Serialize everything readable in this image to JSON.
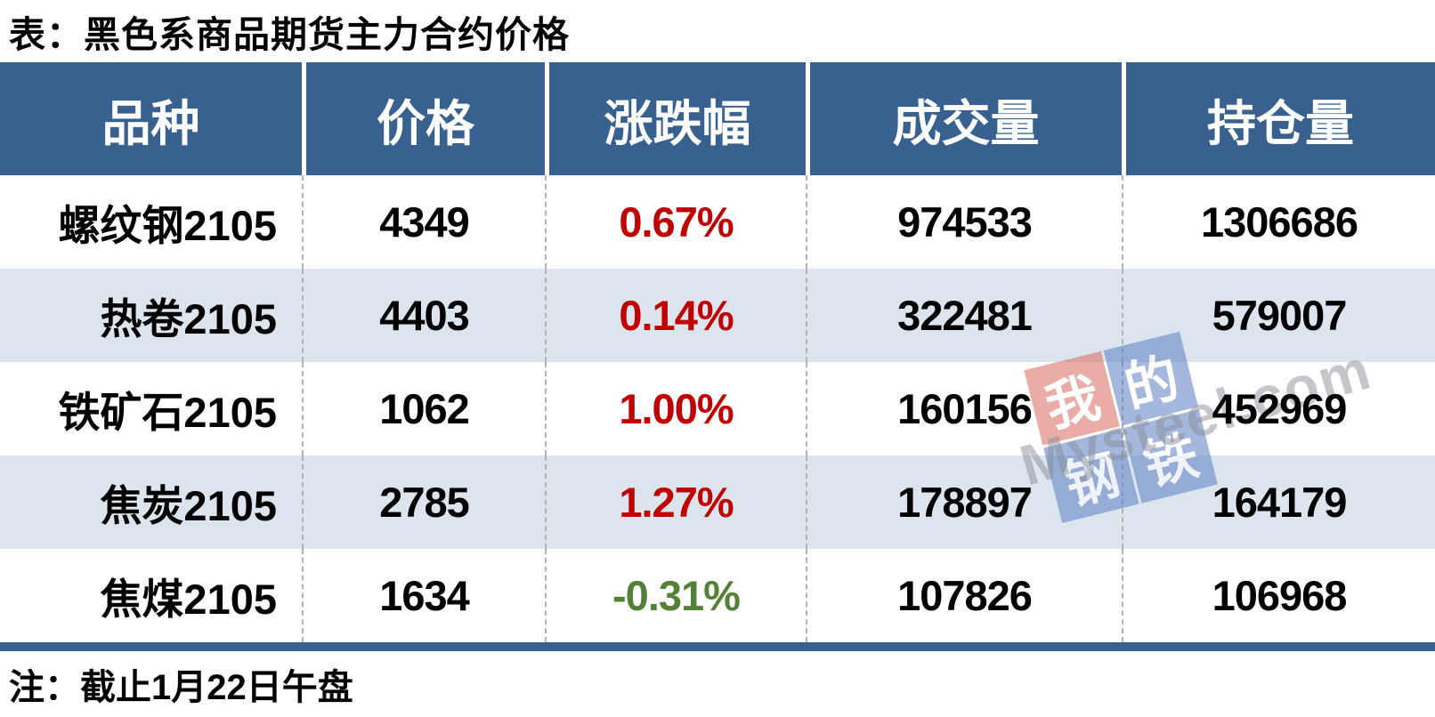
{
  "page": {
    "title": "表：黑色系商品期货主力合约价格",
    "note": "注：截止1月22日午盘"
  },
  "chart_data": {
    "type": "table",
    "title": "表：黑色系商品期货主力合约价格",
    "columns": [
      "品种",
      "价格",
      "涨跌幅",
      "成交量",
      "持仓量"
    ],
    "rows": [
      [
        "螺纹钢2105",
        "4349",
        "0.67%",
        "974533",
        "1306686"
      ],
      [
        "热卷2105",
        "4403",
        "0.14%",
        "322481",
        "579007"
      ],
      [
        "铁矿石2105",
        "1062",
        "1.00%",
        "160156",
        "452969"
      ],
      [
        "焦炭2105",
        "2785",
        "1.27%",
        "178897",
        "164179"
      ],
      [
        "焦煤2105",
        "1634",
        "-0.31%",
        "107826",
        "106968"
      ]
    ],
    "change_direction": [
      "up",
      "up",
      "up",
      "up",
      "down"
    ],
    "note": "注：截止1月22日午盘",
    "layout": {
      "striped": true,
      "stripe_row_indices": [
        1,
        3
      ],
      "legend": "none",
      "grid": "dashed-column-dividers"
    }
  },
  "watermark": {
    "logo_chars": [
      "我",
      "的",
      "钢",
      "铁"
    ],
    "site_text": "Mysteel.com"
  },
  "colors": {
    "header_bg": "#38618f",
    "stripe_bg": "#dce5ee",
    "up_red": "#c00000",
    "down_green": "#538135",
    "divider_dash": "#b3b3b3",
    "bottom_bar": "#38618f",
    "watermark_red": "#d96a60",
    "watermark_blue": "#5b7fc4",
    "watermark_gray": "#8a8f98"
  }
}
